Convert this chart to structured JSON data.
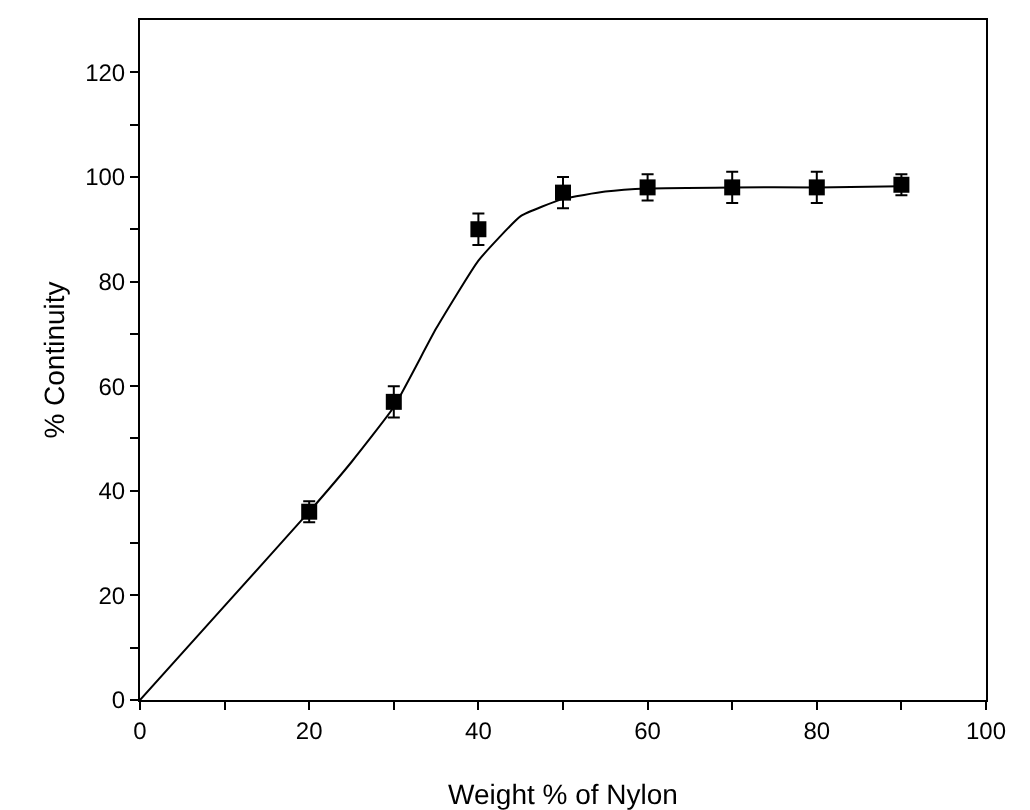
{
  "chart_data": {
    "type": "scatter",
    "xlabel": "Weight % of Nylon",
    "ylabel": "% Continuity",
    "xlim": [
      0,
      100
    ],
    "ylim": [
      0,
      130
    ],
    "xticks": [
      0,
      {
        "value": 10,
        "label": null
      },
      20,
      {
        "value": 30,
        "label": null
      },
      40,
      {
        "value": 50,
        "label": null
      },
      60,
      {
        "value": 70,
        "label": null
      },
      80,
      {
        "value": 90,
        "label": null
      },
      100
    ],
    "yticks": [
      0,
      {
        "value": 10,
        "label": null
      },
      20,
      {
        "value": 30,
        "label": null
      },
      40,
      {
        "value": 50,
        "label": null
      },
      60,
      {
        "value": 70,
        "label": null
      },
      80,
      {
        "value": 90,
        "label": null
      },
      100,
      {
        "value": 110,
        "label": null
      },
      120
    ],
    "grid": false,
    "series": [
      {
        "marker": "square",
        "color": "#000000",
        "x": [
          20,
          30,
          40,
          50,
          60,
          70,
          80,
          90
        ],
        "values": [
          36,
          57,
          90,
          97,
          98,
          98,
          98,
          98.5
        ],
        "errors": [
          2,
          3,
          3,
          3,
          2.5,
          3,
          3,
          2
        ]
      },
      {
        "type": "line",
        "line_style": "solid",
        "color": "#000000",
        "x": [
          0,
          10,
          20,
          25,
          30,
          35,
          40,
          45,
          50,
          55,
          60,
          70,
          80,
          90
        ],
        "values": [
          0,
          18,
          36,
          45.5,
          56,
          71,
          84,
          92.5,
          95.8,
          97.2,
          97.8,
          98,
          98,
          98.2
        ]
      }
    ]
  }
}
